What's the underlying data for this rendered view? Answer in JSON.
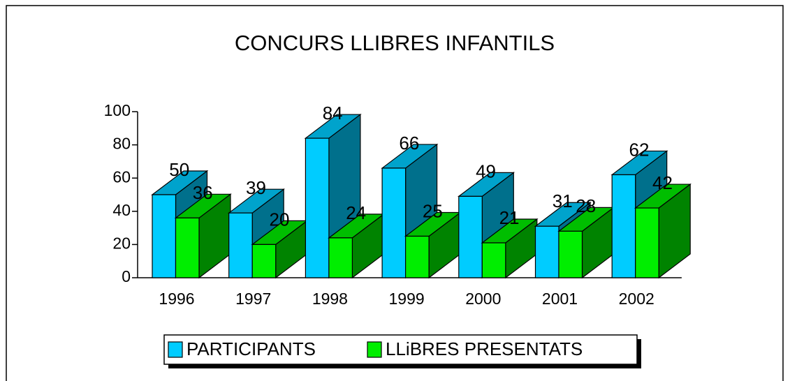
{
  "chart_data": {
    "type": "bar3d",
    "title": "CONCURS LLIBRES INFANTILS",
    "categories": [
      "1996",
      "1997",
      "1998",
      "1999",
      "2000",
      "2001",
      "2002"
    ],
    "series": [
      {
        "name": "PARTICIPANTS",
        "color": "#00ccff",
        "values": [
          50,
          39,
          84,
          66,
          49,
          31,
          62
        ]
      },
      {
        "name": "LLiBRES PRESENTATS",
        "color": "#00ee00",
        "values": [
          36,
          20,
          24,
          25,
          21,
          28,
          42
        ]
      }
    ],
    "ylim": [
      0,
      100
    ],
    "yticks": [
      0,
      20,
      40,
      60,
      80,
      100
    ],
    "legend": "bottom"
  }
}
